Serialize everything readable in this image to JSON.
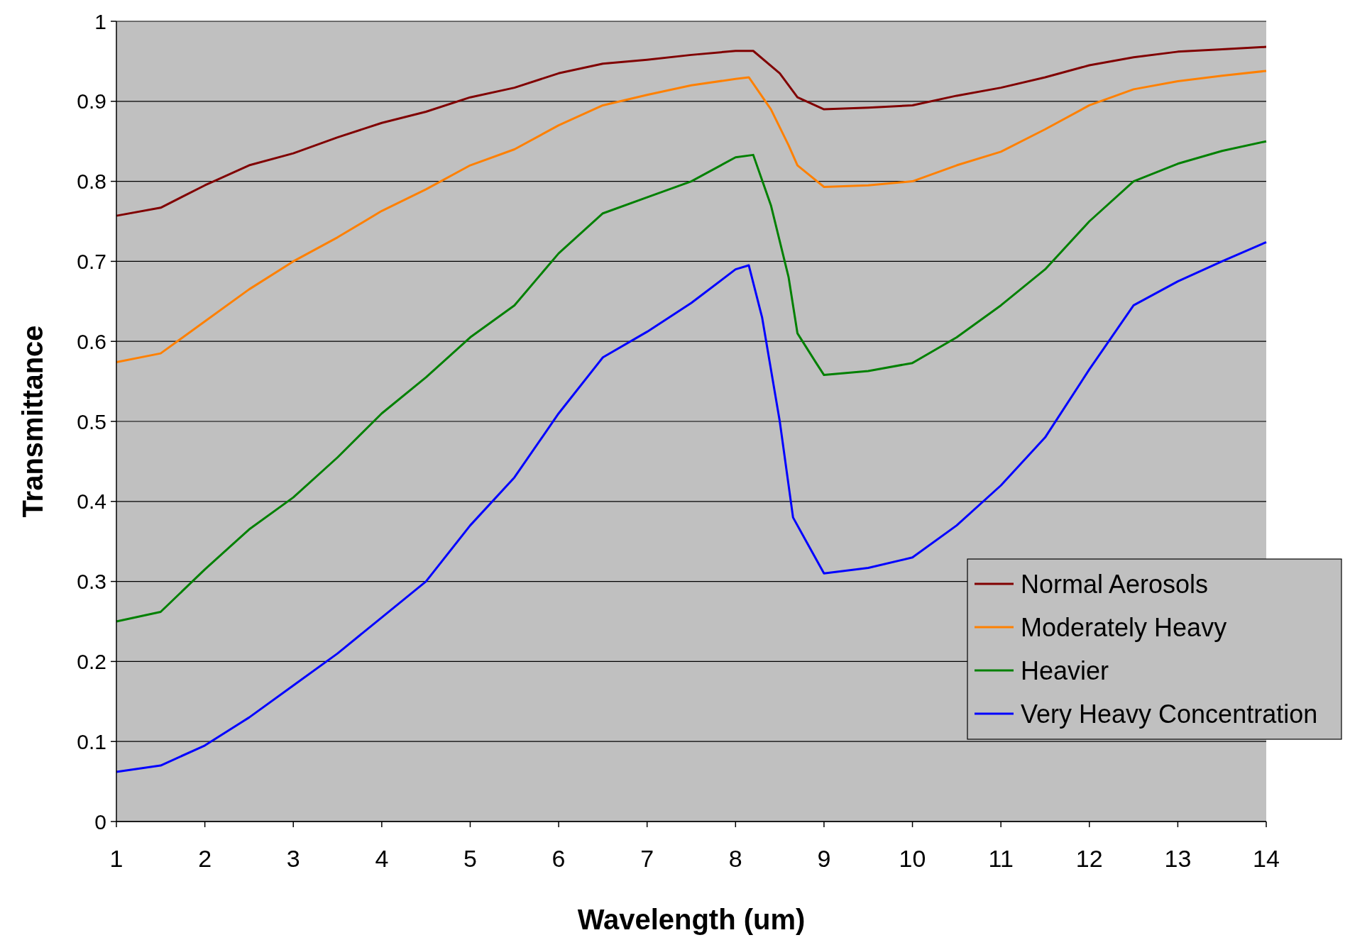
{
  "chart_data": {
    "type": "line",
    "xlabel": "Wavelength (um)",
    "ylabel": "Transmittance",
    "xlim": [
      1,
      14
    ],
    "xticks": [
      1,
      2,
      3,
      4,
      5,
      6,
      7,
      8,
      9,
      10,
      11,
      12,
      13,
      14
    ],
    "ylim": [
      0,
      1
    ],
    "yticks": [
      0,
      0.1,
      0.2,
      0.3,
      0.4,
      0.5,
      0.6,
      0.7,
      0.8,
      0.9,
      1
    ],
    "grid": "y",
    "legend": "right",
    "marker": "none",
    "line_style": "solid",
    "series": [
      {
        "name": "Normal Aerosols",
        "color": "#800000",
        "x": [
          1,
          1.5,
          2,
          2.5,
          3,
          3.5,
          4,
          4.5,
          5,
          5.5,
          6,
          6.5,
          7,
          7.5,
          8,
          8.2,
          8.5,
          8.7,
          9,
          9.5,
          10,
          10.5,
          11,
          11.5,
          12,
          12.5,
          13,
          13.5,
          14
        ],
        "values": [
          0.757,
          0.767,
          0.795,
          0.82,
          0.835,
          0.855,
          0.873,
          0.887,
          0.905,
          0.917,
          0.935,
          0.947,
          0.952,
          0.958,
          0.963,
          0.963,
          0.935,
          0.905,
          0.89,
          0.892,
          0.895,
          0.907,
          0.917,
          0.93,
          0.945,
          0.955,
          0.962,
          0.965,
          0.968
        ]
      },
      {
        "name": "Moderately Heavy",
        "color": "#ff8000",
        "x": [
          1,
          1.5,
          2,
          2.5,
          3,
          3.5,
          4,
          4.5,
          5,
          5.5,
          6,
          6.5,
          7,
          7.5,
          8,
          8.15,
          8.4,
          8.6,
          8.7,
          9,
          9.5,
          10,
          10.5,
          11,
          11.5,
          12,
          12.5,
          13,
          13.5,
          14
        ],
        "values": [
          0.574,
          0.585,
          0.625,
          0.665,
          0.7,
          0.73,
          0.763,
          0.79,
          0.82,
          0.84,
          0.87,
          0.895,
          0.908,
          0.92,
          0.928,
          0.93,
          0.89,
          0.845,
          0.82,
          0.793,
          0.795,
          0.8,
          0.82,
          0.837,
          0.865,
          0.895,
          0.915,
          0.925,
          0.932,
          0.938
        ]
      },
      {
        "name": "Heavier",
        "color": "#008000",
        "x": [
          1,
          1.5,
          2,
          2.5,
          3,
          3.5,
          4,
          4.5,
          5,
          5.5,
          6,
          6.5,
          7,
          7.5,
          8,
          8.2,
          8.4,
          8.6,
          8.7,
          8.9,
          9,
          9.5,
          10,
          10.5,
          11,
          11.5,
          12,
          12.5,
          13,
          13.5,
          14
        ],
        "values": [
          0.25,
          0.262,
          0.315,
          0.365,
          0.405,
          0.455,
          0.51,
          0.555,
          0.605,
          0.645,
          0.71,
          0.76,
          0.78,
          0.8,
          0.83,
          0.833,
          0.77,
          0.68,
          0.61,
          0.575,
          0.558,
          0.563,
          0.573,
          0.605,
          0.645,
          0.69,
          0.75,
          0.8,
          0.822,
          0.838,
          0.85
        ]
      },
      {
        "name": "Very Heavy Concentration",
        "color": "#0000ff",
        "x": [
          1,
          1.5,
          2,
          2.5,
          3,
          3.5,
          4,
          4.5,
          5,
          5.5,
          6,
          6.5,
          7,
          7.5,
          8,
          8.15,
          8.3,
          8.5,
          8.65,
          8.8,
          9,
          9.5,
          10,
          10.5,
          11,
          11.5,
          12,
          12.5,
          13,
          13.5,
          14
        ],
        "values": [
          0.062,
          0.07,
          0.095,
          0.13,
          0.17,
          0.21,
          0.255,
          0.3,
          0.37,
          0.43,
          0.51,
          0.58,
          0.612,
          0.648,
          0.69,
          0.695,
          0.63,
          0.5,
          0.38,
          0.35,
          0.31,
          0.317,
          0.33,
          0.37,
          0.42,
          0.48,
          0.565,
          0.645,
          0.675,
          0.7,
          0.724
        ]
      }
    ]
  }
}
